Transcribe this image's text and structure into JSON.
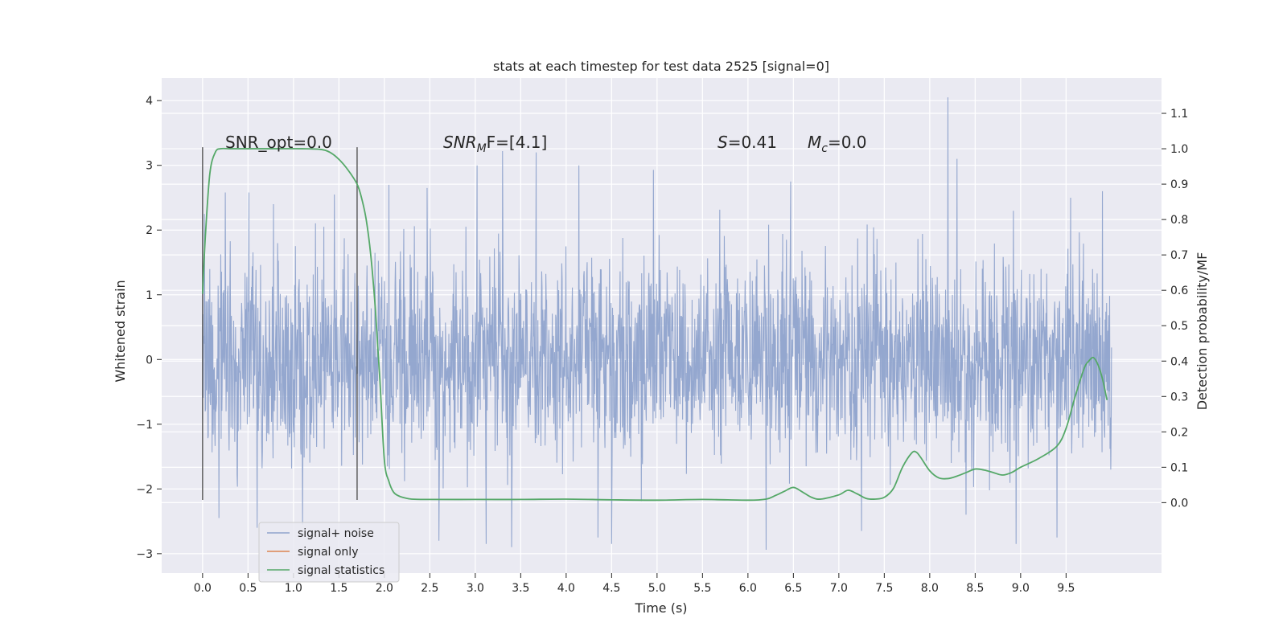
{
  "chart_data": {
    "type": "line",
    "title": "stats at each timestep for test data 2525 [signal=0]",
    "xlabel": "Time (s)",
    "ylabel_left": "Whitened strain",
    "ylabel_right": "Detection probability/MF",
    "xlim": [
      -0.45,
      10.55
    ],
    "ylim_left": [
      -3.3,
      4.35
    ],
    "ylim_right": [
      -0.199,
      1.2
    ],
    "x_ticks": [
      "0.0",
      "0.5",
      "1.0",
      "1.5",
      "2.0",
      "2.5",
      "3.0",
      "3.5",
      "4.0",
      "4.5",
      "5.0",
      "5.5",
      "6.0",
      "6.5",
      "7.0",
      "7.5",
      "8.0",
      "8.5",
      "9.0",
      "9.5"
    ],
    "y_ticks_left": [
      "4",
      "3",
      "2",
      "1",
      "0",
      "−1",
      "−2",
      "−3"
    ],
    "y_ticks_right": [
      "1.1",
      "1.0",
      "0.9",
      "0.8",
      "0.7",
      "0.6",
      "0.5",
      "0.4",
      "0.3",
      "0.2",
      "0.1",
      "0.0"
    ],
    "grid": true,
    "background": "#eaeaf2",
    "annotations": {
      "snr_opt": "SNR_opt=0.0",
      "snr_mf_main": "SNR",
      "snr_mf_sub": "M",
      "snr_mf_rest": "F=[4.1]",
      "s_main": "S",
      "s_rest": "=0.41",
      "mc_main": "M",
      "mc_sub": "c",
      "mc_rest": "=0.0"
    },
    "window_markers_x": [
      0.0,
      1.7
    ],
    "window_marker_y_range": [
      -2.17,
      3.28
    ],
    "series": [
      {
        "name": "signal+ noise",
        "color": "#8fa3cc",
        "x_range": [
          0.0,
          10.0
        ],
        "y_min": -2.94,
        "y_max": 4.05,
        "peaks": [
          {
            "x": 0.02,
            "y": 2.25
          },
          {
            "x": 0.25,
            "y": 2.58
          },
          {
            "x": 0.51,
            "y": 2.58
          },
          {
            "x": 0.78,
            "y": 2.4
          },
          {
            "x": 1.1,
            "y": 2.6
          },
          {
            "x": 1.45,
            "y": 2.55
          },
          {
            "x": 2.05,
            "y": 2.7
          },
          {
            "x": 2.47,
            "y": 2.65
          },
          {
            "x": 3.02,
            "y": 3.0
          },
          {
            "x": 3.3,
            "y": 3.22
          },
          {
            "x": 3.67,
            "y": 3.2
          },
          {
            "x": 4.14,
            "y": 3.0
          },
          {
            "x": 4.96,
            "y": 2.93
          },
          {
            "x": 6.47,
            "y": 2.75
          },
          {
            "x": 8.2,
            "y": 4.05
          },
          {
            "x": 8.3,
            "y": 3.1
          },
          {
            "x": 9.55,
            "y": 2.5
          },
          {
            "x": 9.9,
            "y": 2.6
          }
        ],
        "troughs": [
          {
            "x": 0.18,
            "y": -2.45
          },
          {
            "x": 0.6,
            "y": -2.6
          },
          {
            "x": 1.1,
            "y": -2.55
          },
          {
            "x": 2.6,
            "y": -2.8
          },
          {
            "x": 3.12,
            "y": -2.85
          },
          {
            "x": 3.4,
            "y": -2.9
          },
          {
            "x": 4.35,
            "y": -2.75
          },
          {
            "x": 4.5,
            "y": -2.85
          },
          {
            "x": 6.2,
            "y": -2.94
          },
          {
            "x": 7.25,
            "y": -2.65
          },
          {
            "x": 8.95,
            "y": -2.85
          },
          {
            "x": 9.4,
            "y": -2.75
          }
        ]
      },
      {
        "name": "signal only",
        "color": "#dd8452",
        "x": [],
        "y": []
      },
      {
        "name": "signal statistics",
        "color": "#55a868",
        "axis": "right",
        "x": [
          0.0,
          0.03,
          0.08,
          0.14,
          0.2,
          0.3,
          0.5,
          0.8,
          1.1,
          1.3,
          1.4,
          1.5,
          1.6,
          1.7,
          1.75,
          1.8,
          1.85,
          1.9,
          1.95,
          2.0,
          2.05,
          2.1,
          2.15,
          2.2,
          2.3,
          2.5,
          3.0,
          3.5,
          4.0,
          4.5,
          5.0,
          5.5,
          6.0,
          6.2,
          6.3,
          6.4,
          6.5,
          6.6,
          6.7,
          6.8,
          7.0,
          7.1,
          7.2,
          7.3,
          7.4,
          7.5,
          7.6,
          7.7,
          7.8,
          7.85,
          7.9,
          8.0,
          8.1,
          8.2,
          8.3,
          8.4,
          8.5,
          8.6,
          8.7,
          8.8,
          8.9,
          9.0,
          9.2,
          9.4,
          9.5,
          9.6,
          9.7,
          9.75,
          9.8,
          9.85,
          9.9,
          9.95
        ],
        "y": [
          0.59,
          0.75,
          0.93,
          0.99,
          1.0,
          1.0,
          1.0,
          1.0,
          1.0,
          0.998,
          0.99,
          0.97,
          0.94,
          0.9,
          0.86,
          0.8,
          0.7,
          0.55,
          0.35,
          0.12,
          0.06,
          0.03,
          0.02,
          0.015,
          0.01,
          0.009,
          0.009,
          0.009,
          0.01,
          0.008,
          0.007,
          0.009,
          0.007,
          0.01,
          0.02,
          0.032,
          0.043,
          0.03,
          0.015,
          0.01,
          0.022,
          0.035,
          0.025,
          0.012,
          0.01,
          0.015,
          0.04,
          0.1,
          0.14,
          0.143,
          0.128,
          0.09,
          0.07,
          0.068,
          0.075,
          0.085,
          0.095,
          0.092,
          0.085,
          0.078,
          0.085,
          0.1,
          0.125,
          0.16,
          0.21,
          0.3,
          0.38,
          0.4,
          0.41,
          0.39,
          0.35,
          0.29
        ]
      }
    ],
    "legend": {
      "position": "bottom-left",
      "entries": [
        "signal+ noise",
        "signal only",
        "signal statistics"
      ]
    }
  }
}
